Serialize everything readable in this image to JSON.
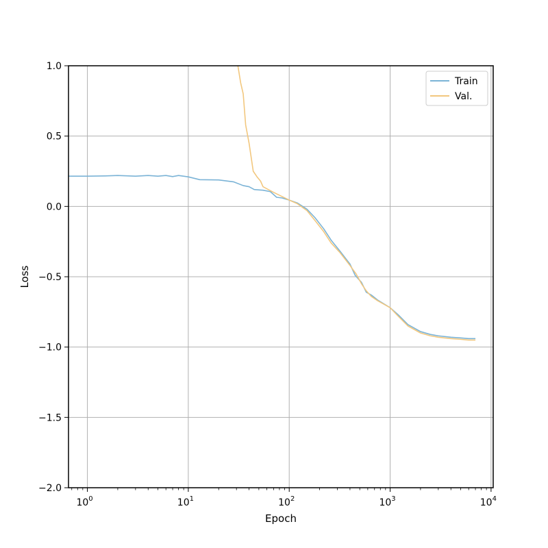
{
  "chart_data": {
    "type": "line",
    "title": "",
    "xlabel": "Epoch",
    "ylabel": "Loss",
    "xscale": "log",
    "xlim": [
      0.65,
      10500
    ],
    "ylim": [
      -2.0,
      1.0
    ],
    "grid": true,
    "legend_position": "top-right",
    "x_ticks": [
      {
        "value": 1,
        "label": "10",
        "exp": "0"
      },
      {
        "value": 10,
        "label": "10",
        "exp": "1"
      },
      {
        "value": 100,
        "label": "10",
        "exp": "2"
      },
      {
        "value": 1000,
        "label": "10",
        "exp": "3"
      },
      {
        "value": 10000,
        "label": "10",
        "exp": "4"
      }
    ],
    "y_ticks": [
      {
        "value": 1.0,
        "label": "1.0"
      },
      {
        "value": 0.5,
        "label": "0.5"
      },
      {
        "value": 0.0,
        "label": "0.0"
      },
      {
        "value": -0.5,
        "label": "−0.5"
      },
      {
        "value": -1.0,
        "label": "−1.0"
      },
      {
        "value": -1.5,
        "label": "−1.5"
      },
      {
        "value": -2.0,
        "label": "−2.0"
      }
    ],
    "series": [
      {
        "name": "Train",
        "color": "#7ab3d6",
        "points": [
          [
            0.65,
            0.215
          ],
          [
            1,
            0.215
          ],
          [
            1.5,
            0.217
          ],
          [
            2,
            0.22
          ],
          [
            3,
            0.215
          ],
          [
            4,
            0.22
          ],
          [
            5,
            0.215
          ],
          [
            6,
            0.22
          ],
          [
            7,
            0.212
          ],
          [
            8,
            0.22
          ],
          [
            10,
            0.21
          ],
          [
            13,
            0.19
          ],
          [
            20,
            0.188
          ],
          [
            28,
            0.175
          ],
          [
            35,
            0.148
          ],
          [
            40,
            0.14
          ],
          [
            45,
            0.12
          ],
          [
            55,
            0.115
          ],
          [
            65,
            0.105
          ],
          [
            75,
            0.065
          ],
          [
            85,
            0.06
          ],
          [
            100,
            0.045
          ],
          [
            120,
            0.025
          ],
          [
            150,
            -0.02
          ],
          [
            180,
            -0.08
          ],
          [
            220,
            -0.16
          ],
          [
            260,
            -0.24
          ],
          [
            320,
            -0.32
          ],
          [
            400,
            -0.41
          ],
          [
            450,
            -0.49
          ],
          [
            520,
            -0.54
          ],
          [
            580,
            -0.61
          ],
          [
            650,
            -0.63
          ],
          [
            750,
            -0.665
          ],
          [
            1000,
            -0.72
          ],
          [
            1200,
            -0.77
          ],
          [
            1500,
            -0.84
          ],
          [
            2000,
            -0.89
          ],
          [
            2500,
            -0.91
          ],
          [
            3000,
            -0.92
          ],
          [
            4000,
            -0.93
          ],
          [
            5000,
            -0.935
          ],
          [
            6000,
            -0.94
          ],
          [
            7000,
            -0.94
          ]
        ]
      },
      {
        "name": "Val.",
        "color": "#f2c77e",
        "points": [
          [
            31,
            1.0
          ],
          [
            33,
            0.88
          ],
          [
            35,
            0.8
          ],
          [
            37,
            0.58
          ],
          [
            40,
            0.45
          ],
          [
            44,
            0.25
          ],
          [
            48,
            0.21
          ],
          [
            52,
            0.18
          ],
          [
            55,
            0.14
          ],
          [
            62,
            0.12
          ],
          [
            70,
            0.1
          ],
          [
            85,
            0.07
          ],
          [
            100,
            0.045
          ],
          [
            120,
            0.02
          ],
          [
            150,
            -0.03
          ],
          [
            180,
            -0.1
          ],
          [
            220,
            -0.18
          ],
          [
            260,
            -0.26
          ],
          [
            320,
            -0.33
          ],
          [
            400,
            -0.42
          ],
          [
            460,
            -0.48
          ],
          [
            520,
            -0.55
          ],
          [
            580,
            -0.6
          ],
          [
            650,
            -0.64
          ],
          [
            750,
            -0.67
          ],
          [
            1000,
            -0.72
          ],
          [
            1200,
            -0.78
          ],
          [
            1500,
            -0.85
          ],
          [
            2000,
            -0.9
          ],
          [
            2500,
            -0.92
          ],
          [
            3000,
            -0.93
          ],
          [
            4000,
            -0.94
          ],
          [
            5000,
            -0.945
          ],
          [
            6000,
            -0.95
          ],
          [
            7000,
            -0.95
          ]
        ]
      }
    ]
  }
}
